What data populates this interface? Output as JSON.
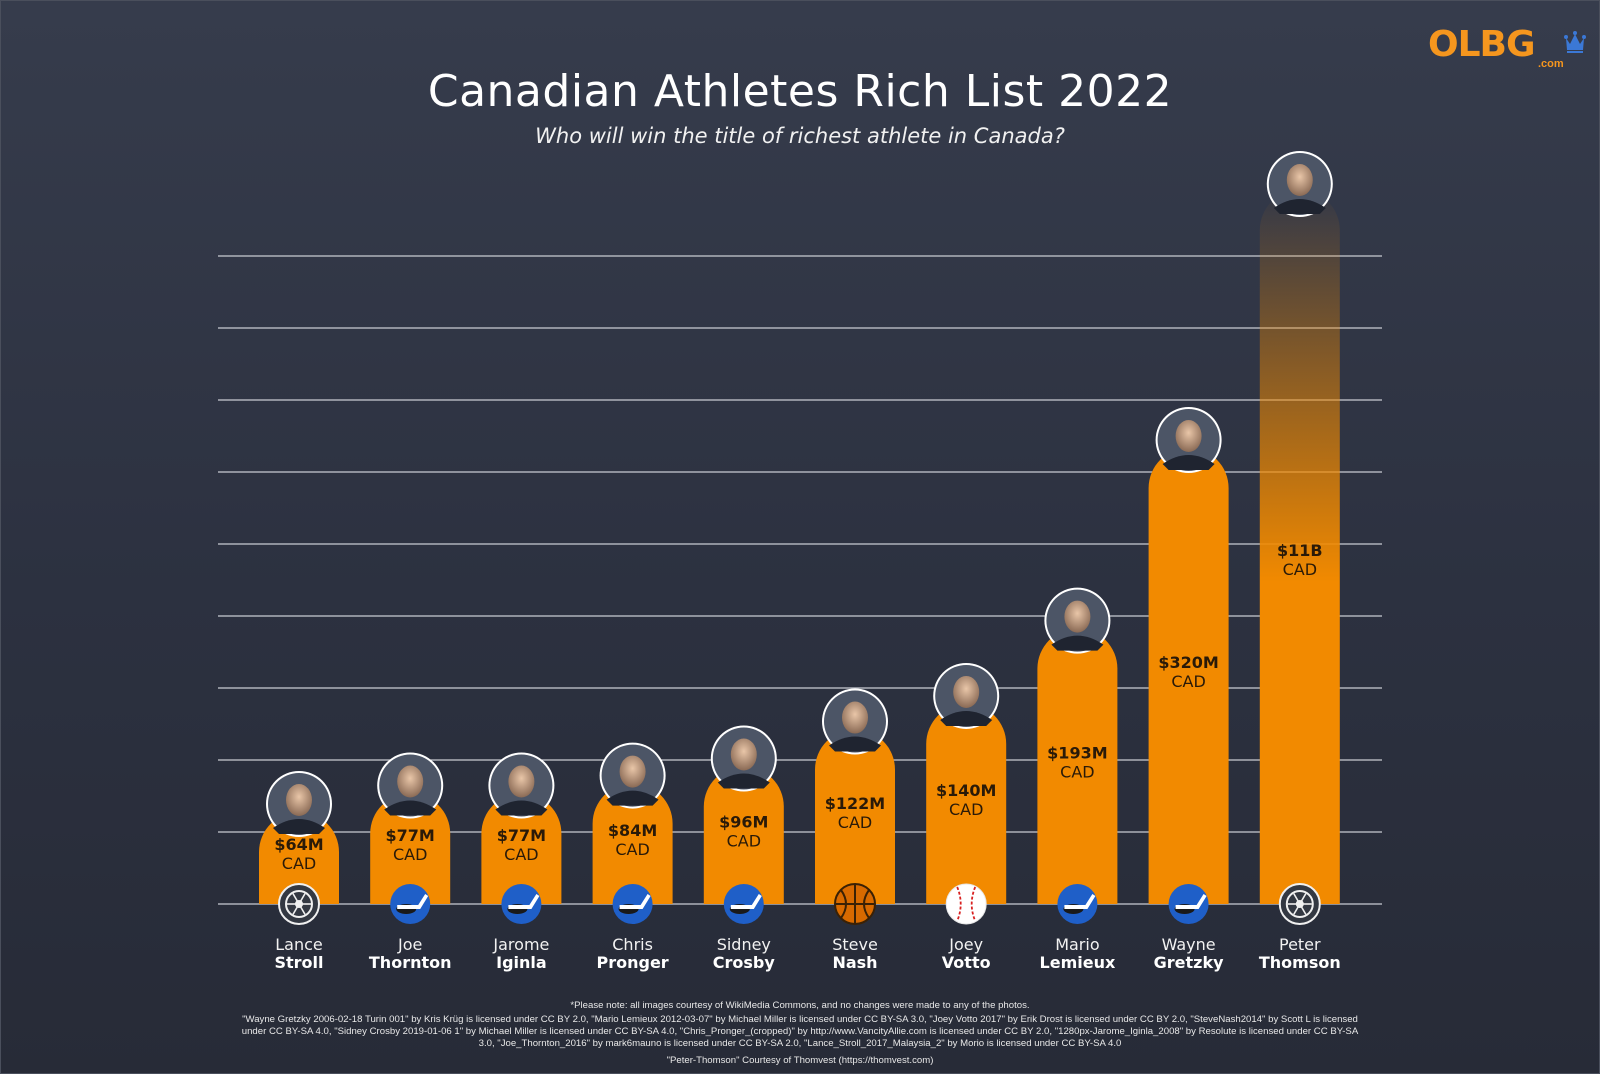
{
  "brand": {
    "logo_text": "OLBG",
    "logo_suffix": ".com",
    "accent": "#f28a00"
  },
  "header": {
    "title": "Canadian Athletes Rich List 2022",
    "subtitle": "Who will win the title of richest athlete in Canada?"
  },
  "chart_data": {
    "type": "bar",
    "title": "Canadian Athletes Rich List 2022",
    "subtitle": "Who will win the title of richest athlete in Canada?",
    "xlabel": "",
    "ylabel": "",
    "grid": true,
    "categories": [
      {
        "first": "Lance",
        "last": "Stroll",
        "value_label": "$64M",
        "unit": "CAD",
        "value": 64,
        "sport_icon": "tire-icon"
      },
      {
        "first": "Joe",
        "last": "Thornton",
        "value_label": "$77M",
        "unit": "CAD",
        "value": 77,
        "sport_icon": "hockey-icon"
      },
      {
        "first": "Jarome",
        "last": "Iginla",
        "value_label": "$77M",
        "unit": "CAD",
        "value": 77,
        "sport_icon": "hockey-icon"
      },
      {
        "first": "Chris",
        "last": "Pronger",
        "value_label": "$84M",
        "unit": "CAD",
        "value": 84,
        "sport_icon": "hockey-icon"
      },
      {
        "first": "Sidney",
        "last": "Crosby",
        "value_label": "$96M",
        "unit": "CAD",
        "value": 96,
        "sport_icon": "hockey-icon"
      },
      {
        "first": "Steve",
        "last": "Nash",
        "value_label": "$122M",
        "unit": "CAD",
        "value": 122,
        "sport_icon": "basketball-icon"
      },
      {
        "first": "Joey",
        "last": "Votto",
        "value_label": "$140M",
        "unit": "CAD",
        "value": 140,
        "sport_icon": "baseball-icon"
      },
      {
        "first": "Mario",
        "last": "Lemieux",
        "value_label": "$193M",
        "unit": "CAD",
        "value": 193,
        "sport_icon": "hockey-icon"
      },
      {
        "first": "Wayne",
        "last": "Gretzky",
        "value_label": "$320M",
        "unit": "CAD",
        "value": 320,
        "sport_icon": "hockey-icon"
      },
      {
        "first": "Peter",
        "last": "Thomson",
        "value_label": "$11B",
        "unit": "CAD",
        "value": 11000,
        "sport_icon": "tire-icon"
      }
    ],
    "bar_color": "#f28a00",
    "grid_color": "#c9ccd3"
  },
  "footnotes": {
    "note": "*Please note: all images courtesy of WikiMedia Commons, and no changes were made to any of the photos.",
    "credits": "\"Wayne Gretzky 2006-02-18 Turin 001\" by Kris Krüg is licensed under CC BY 2.0, \"Mario Lemieux 2012-03-07\" by Michael Miller is licensed under CC BY-SA 3.0, \"Joey Votto 2017\" by Erik Drost is licensed under CC BY 2.0, \"SteveNash2014\" by Scott L is licensed under CC BY-SA 4.0, \"Sidney Crosby 2019-01-06 1\" by Michael Miller is licensed under CC BY-SA 4.0, \"Chris_Pronger_(cropped)\" by http://www.VancityAllie.com is licensed under CC BY 2.0, \"1280px-Jarome_Iginla_2008\" by Resolute is licensed under CC BY-SA 3.0, \"Joe_Thornton_2016\" by mark6mauno is licensed under CC BY-SA 2.0, \"Lance_Stroll_2017_Malaysia_2\" by Morio is licensed under CC BY-SA 4.0",
    "thomvest": "\"Peter-Thomson\" Courtesy of Thomvest (https://thomvest.com)"
  }
}
